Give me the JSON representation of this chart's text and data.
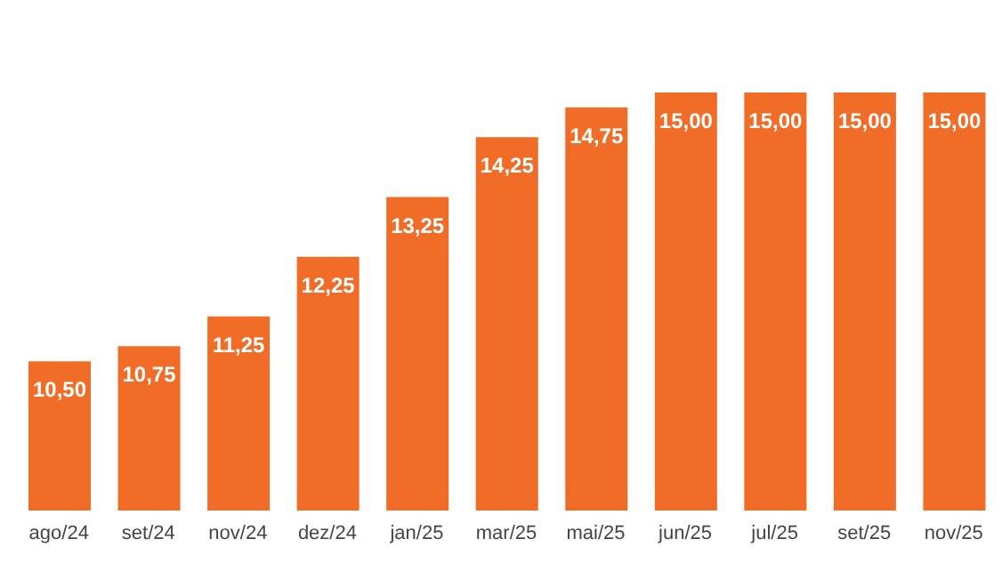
{
  "chart_data": {
    "type": "bar",
    "categories": [
      "ago/24",
      "set/24",
      "nov/24",
      "dez/24",
      "jan/25",
      "mar/25",
      "mai/25",
      "jun/25",
      "jul/25",
      "set/25",
      "nov/25"
    ],
    "values": [
      10.5,
      10.75,
      11.25,
      12.25,
      13.25,
      14.25,
      14.75,
      15,
      15,
      15,
      15
    ],
    "value_labels": [
      "10,50",
      "10,75",
      "11,25",
      "12,25",
      "13,25",
      "14,25",
      "14,75",
      "15,00",
      "15,00",
      "15,00",
      "15,00"
    ],
    "color": "#f06c27",
    "ylim": [
      8,
      15
    ],
    "tick_labels": "x",
    "grid": false
  }
}
